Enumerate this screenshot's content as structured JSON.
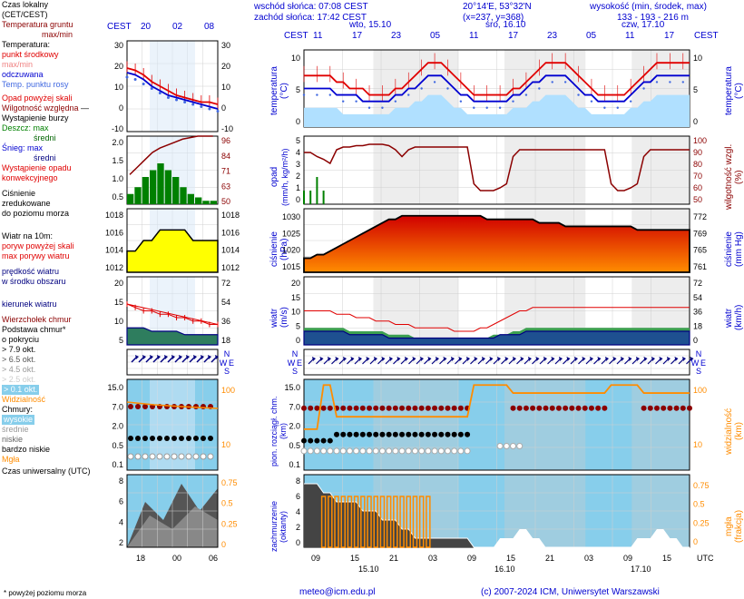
{
  "header": {
    "sunrise": "wschód słońca: 07:08 CEST",
    "sunset": "zachód słońca: 17:42 CEST",
    "coords": "20°14'E, 53°32'N",
    "xy": "(x=237, y=368)",
    "alt_label": "wysokość (min, środek, max)",
    "alt_vals": "133 - 193 - 216 m",
    "days": [
      "wto, 15.10",
      "śro, 16.10",
      "czw, 17.10"
    ],
    "hours_r": [
      "11",
      "17",
      "23",
      "05",
      "11",
      "17",
      "23",
      "05",
      "11",
      "17"
    ],
    "hours_l": [
      "20",
      "02",
      "08"
    ],
    "cest_l": "CEST",
    "cest_r": "CEST"
  },
  "left_legend": {
    "czas_lokalny": "Czas lokalny",
    "cet_cest": "(CET/CEST)",
    "temp_gruntu": "Temperatura gruntu",
    "maxmin": "max/min",
    "temp": "Temperatura:",
    "punkt_sr": "punkt środkowy",
    "maxmin2": "max/min",
    "odczuwana": "odczuwana",
    "temp_rosy": "Temp. punktu rosy",
    "opad_powyzej": "Opad powyżej skali",
    "wilgotnosc": "Wilgotność względna",
    "burza": "Wystąpienie burzy",
    "deszcz": "Deszcz:",
    "deszcz_max": "max",
    "deszcz_sr": "średni",
    "snieg": "Śnieg:",
    "snieg_max": "max",
    "snieg_sr": "średni",
    "opad_konw": "Wystąpienie opadu",
    "opad_konw2": "konwekcyjnego",
    "cisnienie": "Ciśnienie",
    "cisnienie2": "zredukowane",
    "cisnienie3": "do poziomu morza",
    "wiatr10m": "Wiatr na 10m:",
    "poryw_skala": "poryw powyżej skali",
    "max_porywy": "max porywy wiatru",
    "predkosc": "prędkość wiatru",
    "predkosc2": "w środku obszaru",
    "kierunek": "kierunek wiatru",
    "wierzcholek": "Wierzchołek chmur",
    "podstawa": "Podstawa chmur*",
    "pokrycie": "o pokryciu",
    "okt79": "> 7.9 okt.",
    "okt65": "> 6.5 okt.",
    "okt45": "> 4.5 okt.",
    "okt25": "> 2.5 okt.",
    "okt01": "> 0.1 okt.",
    "widzialnosc": "Widzialność",
    "chmury": "Chmury:",
    "wysokie": "wysokie",
    "srednie": "średnie",
    "niskie": "niskie",
    "bniskie": "bardzo niskie",
    "mgla": "Mgła",
    "czas_utc": "Czas uniwersalny (UTC)"
  },
  "rot_labels": {
    "temperatura": "temperatura",
    "temp_unit": "(°C)",
    "opad": "opad",
    "opad_unit": "(mm/h, kg/m²/h)",
    "cisnienie": "ciśnienie",
    "cisnienie_unit": "(hPa)",
    "wiatr": "wiatr",
    "wiatr_unit": "(m/s)",
    "pion": "pion. rozciągł. chm.",
    "pion_unit": "(km)",
    "zachmurzenie": "zachmurzenie",
    "zach_unit": "(oktanty)",
    "temp_r": "temperatura",
    "temp_r_unit": "(°C)",
    "wilg_r": "wilgotność wzgl.",
    "wilg_r_unit": "(%)",
    "cisn_r": "ciśnienie",
    "cisn_r_unit": "(mm Hg)",
    "wiatr_r": "wiatr",
    "wiatr_r_unit": "(km/h)",
    "widz_r": "widzialność",
    "widz_r_unit": "(km)",
    "mgla_r": "mgła",
    "mgla_r_unit": "(frakcja)"
  },
  "axis": {
    "temp_l": [
      "30",
      "20",
      "10",
      "0",
      "-10"
    ],
    "temp_r_small": [
      "30",
      "20",
      "10",
      "0",
      "-10"
    ],
    "temp_r": [
      "10",
      "5",
      "0"
    ],
    "temp_rr": [
      "10",
      "5",
      "0"
    ],
    "rain_l": [
      "2.0",
      "1.5",
      "1.0",
      "0.5"
    ],
    "rain_r_small": [
      "96",
      "84",
      "71",
      "63",
      "50"
    ],
    "rain_r": [
      "5",
      "4",
      "3",
      "2",
      "1",
      "0"
    ],
    "rain_rr": [
      "100",
      "90",
      "80",
      "70",
      "60",
      "50"
    ],
    "press_l": [
      "1018",
      "1016",
      "1014",
      "1012"
    ],
    "press_r_small": [
      "1018",
      "1016",
      "1014",
      "1012"
    ],
    "press_r": [
      "1030",
      "1025",
      "1020",
      "1015"
    ],
    "press_rr": [
      "772",
      "769",
      "765",
      "761"
    ],
    "wind_l": [
      "20",
      "15",
      "10",
      "5"
    ],
    "wind_r_small": [
      "72",
      "54",
      "36",
      "18"
    ],
    "wind_r": [
      "20",
      "15",
      "10",
      "5",
      "0"
    ],
    "wind_rr": [
      "72",
      "54",
      "36",
      "18",
      "0"
    ],
    "cloud_l": [
      "15.0",
      "7.0",
      "2.0",
      "0.5",
      "0.1"
    ],
    "cloud_r_small": [
      "100",
      "10"
    ],
    "cloud_r": [
      "15.0",
      "7.0",
      "2.0",
      "0.5",
      "0.1"
    ],
    "cloud_rr": [
      "100",
      "10"
    ],
    "okt_l": [
      "8",
      "6",
      "4",
      "2"
    ],
    "okt_r_small": [
      "0.75",
      "0.5",
      "0.25",
      "0"
    ],
    "okt_r": [
      "8",
      "6",
      "4",
      "2",
      "0"
    ],
    "okt_rr": [
      "0.75",
      "0.5",
      "0.25",
      "0"
    ],
    "utc_l": [
      "18",
      "00",
      "06"
    ],
    "utc_r": [
      "09",
      "15",
      "21",
      "03",
      "09",
      "15",
      "21",
      "03",
      "09",
      "15"
    ],
    "dates_r": [
      "15.10",
      "16.10",
      "17.10"
    ]
  },
  "colors": {
    "red": "#e00000",
    "darkred": "#8b0000",
    "blue": "#0000d0",
    "navy": "#000080",
    "mediumblue": "#4169e1",
    "skyblue": "#87ceeb",
    "lightblue": "#b0e0ff",
    "green": "#008000",
    "darkgreen": "#006400",
    "yellow": "#ffff00",
    "orange": "#ff8c00",
    "orangearea": "#ff4500",
    "grey": "#888888",
    "lightgrey": "#d0d0d0",
    "black": "#000000",
    "nightband": "#d8e8f8"
  },
  "footer": {
    "url": "meteo@icm.edu.pl",
    "copy": "(c) 2007-2024 ICM, Uniwersytet Warszawski",
    "note": "* powyżej poziomu morza",
    "utc": "UTC"
  },
  "compass": {
    "n": "N",
    "s": "S",
    "e": "E",
    "w": "W"
  },
  "charts": {
    "temp_left": {
      "type": "line",
      "xlim": [
        0,
        12
      ],
      "ylim": [
        -10,
        30
      ],
      "red_line": [
        18,
        17,
        15,
        12,
        10,
        8,
        6,
        5,
        4,
        3,
        3,
        2
      ],
      "blue_line": [
        16,
        15,
        13,
        10,
        8,
        6,
        5,
        4,
        3,
        2,
        1,
        0
      ],
      "navy_dots": [
        14,
        13,
        11,
        9,
        7,
        5,
        4,
        3,
        2,
        1,
        0,
        -1
      ]
    },
    "temp_right": {
      "type": "line",
      "xlim": [
        0,
        60
      ],
      "ylim": [
        0,
        12
      ],
      "red": [
        8,
        8,
        8,
        8,
        8,
        7,
        7,
        6,
        6,
        6,
        5,
        5,
        5,
        5,
        6,
        6,
        7,
        8,
        9,
        10,
        10,
        10,
        9,
        8,
        7,
        6,
        5,
        5,
        5,
        5,
        5,
        5,
        6,
        6,
        7,
        8,
        9,
        10,
        10,
        10,
        10,
        9,
        8,
        7,
        6,
        5,
        5,
        5,
        5,
        5,
        6,
        7,
        8,
        9,
        10,
        10,
        10,
        10,
        10,
        10
      ],
      "blue": [
        6,
        6,
        6,
        6,
        6,
        5,
        5,
        5,
        5,
        4,
        4,
        4,
        4,
        4,
        5,
        5,
        6,
        6,
        7,
        8,
        8,
        8,
        7,
        6,
        5,
        5,
        4,
        4,
        4,
        4,
        4,
        4,
        5,
        5,
        6,
        7,
        7,
        8,
        8,
        8,
        8,
        7,
        6,
        5,
        5,
        4,
        4,
        4,
        4,
        4,
        5,
        6,
        7,
        7,
        8,
        8,
        8,
        8,
        8,
        8
      ],
      "fill": [
        3,
        3,
        3,
        3,
        3,
        3,
        2,
        2,
        2,
        2,
        2,
        2,
        2,
        2,
        3,
        3,
        3,
        4,
        4,
        5,
        5,
        5,
        4,
        3,
        3,
        2,
        2,
        2,
        2,
        2,
        2,
        2,
        3,
        3,
        3,
        4,
        4,
        5,
        5,
        5,
        5,
        4,
        3,
        3,
        2,
        2,
        2,
        2,
        2,
        2,
        3,
        3,
        4,
        4,
        5,
        5,
        5,
        5,
        5,
        5
      ]
    },
    "rain_left": {
      "type": "bar",
      "green_bars": [
        0.3,
        0.5,
        0.8,
        1.0,
        1.2,
        1.0,
        0.8,
        0.5,
        0.3,
        0.2,
        0.1,
        0.1
      ],
      "humidity": [
        70,
        75,
        80,
        85,
        88,
        90,
        92,
        94,
        95,
        96,
        96,
        96
      ]
    },
    "rain_right": {
      "type": "bar",
      "green_marks": [
        1,
        1,
        2,
        1,
        0,
        0,
        0,
        0,
        0,
        0,
        0,
        0,
        0,
        0,
        0,
        0,
        0,
        0,
        0,
        0,
        0,
        0,
        0,
        0,
        0,
        0,
        0,
        0,
        0,
        0,
        0,
        0,
        0,
        0,
        0,
        0,
        0,
        0,
        0,
        0,
        0,
        0,
        0,
        0,
        0,
        0,
        0,
        0,
        0,
        0,
        0,
        0,
        0,
        0,
        0,
        0,
        0,
        0,
        0,
        0
      ],
      "humidity": [
        88,
        88,
        85,
        83,
        80,
        90,
        92,
        92,
        93,
        93,
        94,
        94,
        94,
        93,
        90,
        85,
        90,
        92,
        92,
        92,
        92,
        92,
        92,
        92,
        92,
        92,
        65,
        60,
        60,
        60,
        62,
        65,
        85,
        90,
        90,
        90,
        90,
        90,
        90,
        90,
        90,
        90,
        90,
        90,
        90,
        90,
        90,
        65,
        60,
        60,
        62,
        65,
        85,
        90,
        90,
        90,
        90,
        90,
        90,
        90
      ]
    },
    "press_left": {
      "type": "area",
      "vals": [
        1014,
        1014,
        1015,
        1015,
        1016,
        1016,
        1016,
        1016,
        1015,
        1015,
        1015,
        1015
      ]
    },
    "press_right": {
      "type": "area",
      "vals": [
        1019,
        1019,
        1020,
        1020,
        1021,
        1022,
        1023,
        1024,
        1025,
        1026,
        1027,
        1028,
        1029,
        1030,
        1030,
        1031,
        1031,
        1031,
        1031,
        1031,
        1031,
        1031,
        1031,
        1031,
        1031,
        1031,
        1031,
        1031,
        1030,
        1030,
        1030,
        1030,
        1030,
        1030,
        1030,
        1030,
        1029,
        1029,
        1029,
        1029,
        1028,
        1028,
        1028,
        1028,
        1028,
        1028,
        1028,
        1028,
        1028,
        1028,
        1028,
        1027,
        1027,
        1027,
        1027,
        1027,
        1027,
        1027,
        1027,
        1027
      ]
    },
    "wind_left": {
      "type": "area",
      "gust": [
        12,
        11,
        10,
        10,
        9,
        9,
        8,
        8,
        7,
        7,
        6,
        6
      ],
      "speed": [
        5,
        5,
        5,
        4,
        4,
        4,
        4,
        3,
        3,
        3,
        3,
        3
      ]
    },
    "wind_right": {
      "type": "area",
      "gust": [
        10,
        10,
        10,
        10,
        10,
        9,
        9,
        9,
        8,
        8,
        8,
        7,
        7,
        7,
        6,
        6,
        6,
        5,
        5,
        5,
        5,
        5,
        5,
        4,
        4,
        4,
        4,
        5,
        5,
        6,
        7,
        8,
        9,
        10,
        10,
        11,
        11,
        11,
        11,
        11,
        11,
        11,
        11,
        11,
        11,
        11,
        11,
        11,
        11,
        11,
        11,
        11,
        11,
        11,
        11,
        11,
        11,
        11,
        11,
        11
      ],
      "speed_green": [
        5,
        5,
        5,
        5,
        5,
        5,
        5,
        4,
        4,
        4,
        4,
        4,
        4,
        3,
        3,
        3,
        3,
        2,
        2,
        2,
        2,
        2,
        2,
        2,
        2,
        2,
        2,
        2,
        2,
        3,
        3,
        3,
        4,
        4,
        5,
        5,
        5,
        5,
        5,
        5,
        5,
        5,
        5,
        5,
        5,
        5,
        5,
        5,
        5,
        5,
        5,
        5,
        5,
        5,
        5,
        5,
        5,
        5,
        5,
        5
      ],
      "speed_blue": [
        4,
        4,
        4,
        4,
        4,
        4,
        4,
        3,
        3,
        3,
        3,
        3,
        3,
        2,
        2,
        2,
        2,
        2,
        2,
        2,
        2,
        2,
        2,
        2,
        2,
        2,
        2,
        2,
        2,
        2,
        3,
        3,
        3,
        3,
        4,
        4,
        4,
        4,
        4,
        4,
        4,
        4,
        4,
        4,
        4,
        4,
        4,
        4,
        4,
        4,
        4,
        4,
        4,
        4,
        4,
        4,
        4,
        4,
        4,
        4
      ]
    },
    "clouds_right": {
      "type": "scatter",
      "top_brown": [
        8,
        8,
        8,
        8,
        8,
        8,
        8,
        8,
        8,
        8,
        8,
        8,
        8,
        8,
        8,
        8,
        8,
        8,
        8,
        8,
        8,
        8,
        8,
        8,
        8,
        8,
        null,
        null,
        null,
        null,
        null,
        null,
        8,
        8,
        8,
        8,
        8,
        8,
        8,
        8,
        8,
        8,
        8,
        8,
        8,
        8,
        8,
        null,
        null,
        null,
        null,
        null,
        8,
        8,
        8,
        8,
        8,
        8,
        8,
        8
      ],
      "black": [
        1,
        1,
        1,
        1,
        1,
        1.5,
        1.5,
        1.5,
        1.5,
        1.5,
        1.5,
        1.5,
        1.5,
        1.5,
        1.5,
        1.5,
        1.5,
        1.5,
        1.5,
        1.5,
        1.5,
        1.5,
        1.5,
        1.5,
        1.5,
        1.5,
        null,
        null,
        null,
        null,
        null,
        null,
        null,
        null,
        null,
        null,
        null,
        null,
        null,
        null,
        null,
        null,
        null,
        null,
        null,
        null,
        null,
        null,
        null,
        null,
        null,
        null,
        null,
        null,
        null,
        null,
        null,
        null,
        null,
        null
      ],
      "white": [
        0.5,
        0.5,
        0.5,
        0.5,
        0.5,
        0.5,
        0.5,
        0.5,
        0.5,
        0.5,
        0.5,
        0.5,
        0.5,
        0.5,
        0.5,
        0.5,
        0.5,
        0.5,
        0.5,
        0.5,
        0.5,
        0.5,
        0.5,
        0.5,
        0.5,
        0.5,
        null,
        null,
        null,
        null,
        0.7,
        0.7,
        0.7,
        0.7,
        null,
        null,
        null,
        null,
        null,
        null,
        null,
        null,
        null,
        null,
        null,
        null,
        null,
        null,
        null,
        null,
        null,
        null,
        null,
        null,
        null,
        null,
        null,
        null,
        null,
        null
      ],
      "visibility": [
        8,
        8,
        8,
        75,
        75,
        15,
        15,
        15,
        15,
        15,
        15,
        15,
        15,
        15,
        15,
        15,
        15,
        15,
        15,
        15,
        15,
        15,
        15,
        15,
        15,
        15,
        75,
        75,
        75,
        75,
        75,
        75,
        50,
        50,
        50,
        50,
        50,
        50,
        50,
        50,
        50,
        50,
        50,
        50,
        50,
        50,
        50,
        75,
        75,
        75,
        75,
        75,
        50,
        50,
        50,
        50,
        50,
        50,
        50,
        50
      ]
    },
    "okt_right": {
      "type": "area",
      "dark": [
        7,
        7,
        7,
        6,
        6,
        5,
        5,
        5,
        5,
        4,
        4,
        4,
        3,
        3,
        3,
        2,
        2,
        1,
        1,
        1,
        1,
        1,
        1,
        1,
        1,
        1,
        0,
        0,
        0,
        0,
        0,
        0,
        0,
        0,
        0,
        0,
        0,
        0,
        0,
        0,
        0,
        0,
        0,
        0,
        0,
        0,
        0,
        0,
        0,
        0,
        0,
        0,
        0,
        0,
        0,
        0,
        0,
        0,
        0,
        0
      ],
      "light": [
        0,
        0,
        0,
        0,
        0,
        0,
        0,
        0,
        0,
        0,
        0,
        0,
        0,
        0,
        0,
        0,
        0,
        0,
        0,
        0,
        0,
        0,
        0,
        0,
        0,
        0,
        0,
        0,
        0,
        0,
        1,
        1,
        1,
        2,
        2,
        1,
        1,
        0,
        0,
        0,
        0,
        0,
        0,
        0,
        0,
        0,
        0,
        0,
        0,
        0,
        0,
        1,
        1,
        1,
        2,
        2,
        1,
        1,
        0,
        0
      ],
      "fog_bars": [
        0,
        0,
        0,
        0.7,
        0.7,
        0.7,
        0.7,
        0.7,
        0.7,
        0.7,
        0.7,
        0.7,
        0.7,
        0.7,
        0.7,
        0.7,
        0.7,
        0.7,
        0.7,
        0.7,
        0,
        0,
        0,
        0,
        0,
        0,
        0,
        0,
        0,
        0,
        0,
        0,
        0,
        0,
        0,
        0,
        0,
        0,
        0,
        0,
        0,
        0,
        0,
        0,
        0,
        0,
        0,
        0,
        0,
        0,
        0,
        0,
        0,
        0,
        0,
        0,
        0,
        0,
        0,
        0
      ]
    }
  }
}
